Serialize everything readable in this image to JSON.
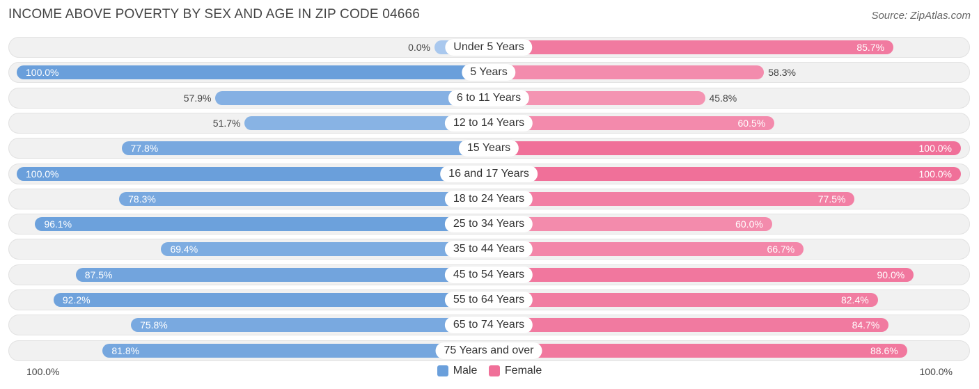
{
  "title": "INCOME ABOVE POVERTY BY SEX AND AGE IN ZIP CODE 04666",
  "source": "Source: ZipAtlas.com",
  "axis": {
    "left_label": "100.0%",
    "right_label": "100.0%"
  },
  "legend": [
    {
      "label": "Male",
      "color": "#6a9fdb"
    },
    {
      "label": "Female",
      "color": "#f07099"
    }
  ],
  "chart_data": {
    "type": "bar",
    "orientation": "horizontal-diverging",
    "title": "INCOME ABOVE POVERTY BY SEX AND AGE IN ZIP CODE 04666",
    "xlim": [
      0,
      100
    ],
    "categories": [
      "Under 5 Years",
      "5 Years",
      "6 to 11 Years",
      "12 to 14 Years",
      "15 Years",
      "16 and 17 Years",
      "18 to 24 Years",
      "25 to 34 Years",
      "35 to 44 Years",
      "45 to 54 Years",
      "55 to 64 Years",
      "65 to 74 Years",
      "75 Years and over"
    ],
    "series": [
      {
        "name": "Male",
        "values": [
          0.0,
          100.0,
          57.9,
          51.7,
          77.8,
          100.0,
          78.3,
          96.1,
          69.4,
          87.5,
          92.2,
          75.8,
          81.8
        ],
        "labels": [
          "0.0%",
          "100.0%",
          "57.9%",
          "51.7%",
          "77.8%",
          "100.0%",
          "78.3%",
          "96.1%",
          "69.4%",
          "87.5%",
          "92.2%",
          "75.8%",
          "81.8%"
        ]
      },
      {
        "name": "Female",
        "values": [
          85.7,
          58.3,
          45.8,
          60.5,
          100.0,
          100.0,
          77.5,
          60.0,
          66.7,
          90.0,
          82.4,
          84.7,
          88.6
        ],
        "labels": [
          "85.7%",
          "58.3%",
          "45.8%",
          "60.5%",
          "100.0%",
          "100.0%",
          "77.5%",
          "60.0%",
          "66.7%",
          "90.0%",
          "82.4%",
          "84.7%",
          "88.6%"
        ]
      }
    ]
  }
}
